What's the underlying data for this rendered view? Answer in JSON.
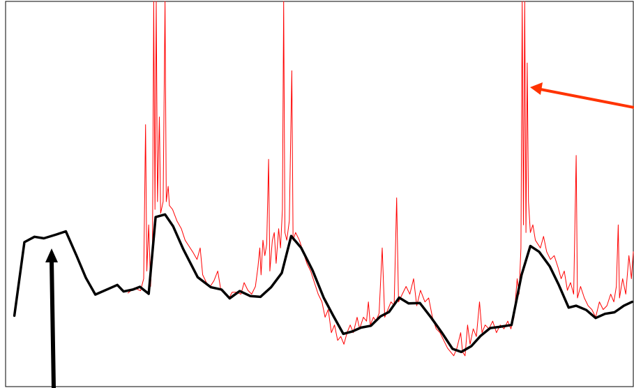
{
  "chart_data": {
    "type": "line",
    "title": "",
    "xlabel": "",
    "ylabel": "",
    "xlim": [
      0,
      100
    ],
    "ylim": [
      0,
      100
    ],
    "grid": false,
    "legend": "none",
    "series": [
      {
        "style": "black-thick",
        "color": "#000000",
        "points": [
          [
            1.4,
            18.4
          ],
          [
            3.0,
            37.5
          ],
          [
            4.6,
            38.9
          ],
          [
            6.1,
            38.5
          ],
          [
            8.1,
            39.5
          ],
          [
            9.6,
            40.3
          ],
          [
            11.3,
            34.0
          ],
          [
            12.8,
            28.2
          ],
          [
            14.3,
            23.9
          ],
          [
            16.7,
            25.6
          ],
          [
            17.8,
            26.4
          ],
          [
            18.8,
            24.7
          ],
          [
            20.3,
            25.2
          ],
          [
            21.4,
            25.9
          ],
          [
            22.8,
            24.1
          ],
          [
            23.9,
            44.0
          ],
          [
            25.4,
            44.7
          ],
          [
            26.7,
            41.6
          ],
          [
            28.3,
            35.7
          ],
          [
            30.6,
            28.4
          ],
          [
            32.7,
            25.8
          ],
          [
            34.4,
            25.2
          ],
          [
            35.7,
            22.9
          ],
          [
            37.3,
            24.8
          ],
          [
            39.0,
            23.5
          ],
          [
            40.6,
            23.3
          ],
          [
            42.3,
            25.8
          ],
          [
            44.0,
            29.5
          ],
          [
            45.5,
            39.1
          ],
          [
            47.1,
            36.0
          ],
          [
            48.9,
            30.2
          ],
          [
            50.7,
            23.0
          ],
          [
            52.2,
            18.4
          ],
          [
            53.8,
            13.7
          ],
          [
            55.2,
            14.3
          ],
          [
            56.6,
            15.3
          ],
          [
            58.2,
            15.8
          ],
          [
            59.7,
            18.2
          ],
          [
            61.1,
            19.4
          ],
          [
            62.7,
            23.1
          ],
          [
            64.2,
            21.6
          ],
          [
            66.0,
            21.7
          ],
          [
            67.8,
            17.9
          ],
          [
            69.5,
            14.0
          ],
          [
            71.2,
            9.8
          ],
          [
            72.6,
            9.0
          ],
          [
            74.2,
            10.5
          ],
          [
            75.7,
            13.2
          ],
          [
            77.2,
            15.2
          ],
          [
            78.7,
            15.5
          ],
          [
            80.6,
            16.0
          ],
          [
            82.2,
            29.0
          ],
          [
            83.6,
            36.5
          ],
          [
            85.0,
            35.0
          ],
          [
            86.7,
            31.2
          ],
          [
            88.1,
            26.5
          ],
          [
            89.7,
            20.5
          ],
          [
            90.9,
            21.0
          ],
          [
            92.5,
            19.9
          ],
          [
            94.0,
            17.8
          ],
          [
            95.5,
            18.9
          ],
          [
            97.0,
            19.3
          ],
          [
            98.5,
            21.0
          ],
          [
            99.8,
            22.0
          ]
        ]
      },
      {
        "style": "red-thin",
        "color": "#ff0000",
        "points": [
          [
            19.5,
            24.3
          ],
          [
            20.5,
            25.6
          ],
          [
            21.5,
            24.9
          ],
          [
            22.0,
            28.0
          ],
          [
            22.3,
            68.0
          ],
          [
            22.5,
            30.0
          ],
          [
            22.8,
            42.0
          ],
          [
            23.1,
            26.0
          ],
          [
            23.4,
            36.0
          ],
          [
            23.6,
            100.0
          ],
          [
            23.8,
            46.0
          ],
          [
            24.0,
            100.0
          ],
          [
            24.2,
            48.0
          ],
          [
            24.5,
            70.0
          ],
          [
            24.7,
            45.0
          ],
          [
            25.1,
            48.0
          ],
          [
            25.4,
            100.0
          ],
          [
            25.6,
            48.0
          ],
          [
            25.9,
            52.0
          ],
          [
            26.1,
            47.0
          ],
          [
            26.6,
            46.0
          ],
          [
            27.3,
            43.0
          ],
          [
            28.0,
            41.0
          ],
          [
            28.6,
            38.0
          ],
          [
            29.2,
            36.5
          ],
          [
            29.8,
            35.0
          ],
          [
            30.5,
            33.0
          ],
          [
            31.0,
            36.0
          ],
          [
            31.4,
            29.0
          ],
          [
            32.0,
            27.0
          ],
          [
            32.6,
            26.0
          ],
          [
            33.2,
            27.5
          ],
          [
            33.8,
            30.0
          ],
          [
            34.3,
            25.0
          ],
          [
            35.0,
            24.0
          ],
          [
            35.6,
            23.0
          ],
          [
            36.1,
            24.5
          ],
          [
            36.8,
            24.5
          ],
          [
            37.5,
            24.0
          ],
          [
            38.0,
            27.0
          ],
          [
            38.6,
            25.0
          ],
          [
            39.2,
            24.0
          ],
          [
            39.8,
            26.0
          ],
          [
            40.2,
            31.0
          ],
          [
            40.5,
            36.0
          ],
          [
            40.7,
            29.0
          ],
          [
            41.0,
            38.0
          ],
          [
            41.3,
            34.0
          ],
          [
            41.6,
            37.0
          ],
          [
            41.9,
            59.0
          ],
          [
            42.1,
            30.0
          ],
          [
            42.5,
            38.0
          ],
          [
            42.8,
            40.0
          ],
          [
            43.1,
            32.0
          ],
          [
            43.5,
            41.0
          ],
          [
            43.8,
            36.0
          ],
          [
            44.1,
            46.0
          ],
          [
            44.3,
            100.0
          ],
          [
            44.5,
            40.0
          ],
          [
            44.8,
            38.0
          ],
          [
            45.2,
            43.0
          ],
          [
            45.6,
            82.0
          ],
          [
            45.8,
            38.0
          ],
          [
            46.2,
            40.0
          ],
          [
            46.8,
            38.0
          ],
          [
            47.4,
            35.0
          ],
          [
            48.0,
            32.0
          ],
          [
            48.6,
            30.0
          ],
          [
            49.2,
            27.0
          ],
          [
            49.8,
            24.0
          ],
          [
            50.4,
            22.0
          ],
          [
            50.9,
            18.0
          ],
          [
            51.4,
            20.0
          ],
          [
            51.9,
            14.0
          ],
          [
            52.4,
            16.0
          ],
          [
            52.9,
            12.0
          ],
          [
            53.4,
            13.0
          ],
          [
            53.9,
            11.0
          ],
          [
            54.4,
            14.0
          ],
          [
            54.9,
            16.0
          ],
          [
            55.4,
            14.0
          ],
          [
            56.0,
            18.0
          ],
          [
            56.4,
            15.0
          ],
          [
            57.0,
            18.0
          ],
          [
            57.5,
            17.0
          ],
          [
            57.8,
            22.0
          ],
          [
            58.1,
            16.0
          ],
          [
            58.6,
            18.0
          ],
          [
            59.0,
            17.0
          ],
          [
            59.5,
            19.0
          ],
          [
            60.0,
            36.0
          ],
          [
            60.4,
            18.0
          ],
          [
            60.9,
            20.0
          ],
          [
            61.4,
            22.0
          ],
          [
            61.9,
            21.0
          ],
          [
            62.3,
            49.0
          ],
          [
            62.6,
            22.0
          ],
          [
            63.2,
            24.0
          ],
          [
            63.8,
            26.0
          ],
          [
            64.4,
            24.0
          ],
          [
            65.0,
            28.0
          ],
          [
            65.5,
            21.0
          ],
          [
            66.1,
            25.0
          ],
          [
            66.8,
            22.0
          ],
          [
            67.4,
            23.0
          ],
          [
            68.0,
            18.0
          ],
          [
            68.6,
            15.0
          ],
          [
            69.2,
            14.0
          ],
          [
            69.8,
            12.0
          ],
          [
            70.4,
            10.0
          ],
          [
            70.9,
            9.0
          ],
          [
            71.4,
            8.0
          ],
          [
            71.9,
            10.0
          ],
          [
            72.5,
            14.0
          ],
          [
            72.8,
            9.0
          ],
          [
            73.2,
            8.0
          ],
          [
            73.6,
            16.0
          ],
          [
            74.0,
            11.0
          ],
          [
            74.5,
            15.0
          ],
          [
            75.0,
            13.0
          ],
          [
            75.5,
            22.0
          ],
          [
            75.9,
            14.0
          ],
          [
            76.4,
            16.0
          ],
          [
            77.0,
            15.0
          ],
          [
            77.6,
            17.0
          ],
          [
            78.2,
            14.0
          ],
          [
            78.8,
            16.0
          ],
          [
            79.4,
            15.0
          ],
          [
            80.0,
            17.0
          ],
          [
            80.5,
            15.0
          ],
          [
            81.0,
            18.0
          ],
          [
            81.5,
            28.0
          ],
          [
            81.8,
            24.0
          ],
          [
            82.1,
            36.0
          ],
          [
            82.3,
            100.0
          ],
          [
            82.5,
            42.0
          ],
          [
            82.7,
            100.0
          ],
          [
            82.9,
            40.0
          ],
          [
            83.1,
            84.0
          ],
          [
            83.3,
            48.0
          ],
          [
            83.6,
            40.0
          ],
          [
            84.0,
            42.0
          ],
          [
            84.4,
            38.0
          ],
          [
            84.8,
            37.0
          ],
          [
            85.2,
            36.0
          ],
          [
            85.7,
            39.0
          ],
          [
            86.2,
            35.0
          ],
          [
            86.8,
            33.0
          ],
          [
            87.4,
            34.0
          ],
          [
            88.0,
            31.0
          ],
          [
            88.5,
            28.0
          ],
          [
            89.0,
            30.0
          ],
          [
            89.5,
            25.0
          ],
          [
            90.0,
            27.0
          ],
          [
            90.5,
            24.0
          ],
          [
            90.9,
            60.0
          ],
          [
            91.1,
            23.0
          ],
          [
            91.6,
            26.0
          ],
          [
            92.2,
            23.0
          ],
          [
            92.8,
            21.0
          ],
          [
            93.4,
            20.0
          ],
          [
            94.0,
            18.0
          ],
          [
            94.6,
            22.0
          ],
          [
            95.2,
            20.0
          ],
          [
            95.8,
            21.0
          ],
          [
            96.4,
            24.0
          ],
          [
            96.9,
            22.0
          ],
          [
            97.3,
            26.0
          ],
          [
            97.6,
            42.0
          ],
          [
            97.8,
            23.0
          ],
          [
            98.3,
            28.0
          ],
          [
            98.8,
            24.0
          ],
          [
            99.3,
            34.0
          ],
          [
            99.7,
            28.0
          ],
          [
            100.0,
            35.0
          ]
        ]
      }
    ],
    "annotations": [
      {
        "name": "black-arrow",
        "color": "#000000"
      },
      {
        "name": "red-arrow",
        "color": "#ff3300"
      }
    ]
  }
}
